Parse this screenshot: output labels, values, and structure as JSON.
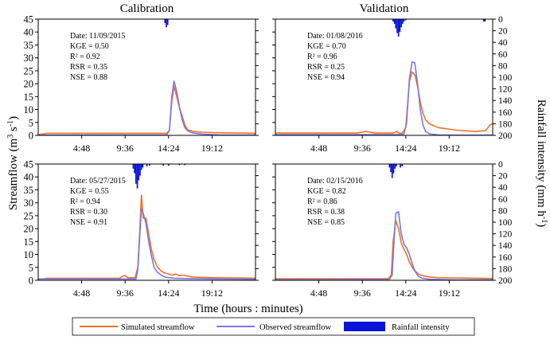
{
  "colors": {
    "simulated": "#f07124",
    "observed": "#7777ee",
    "rainfall": "#0a14d9",
    "axis": "#000000"
  },
  "figure": {
    "ylabel_left_main": "Streamflow (m",
    "ylabel_left_sup1": "3",
    "ylabel_left_mid": " s",
    "ylabel_left_sup2": "-1",
    "ylabel_left_end": ")",
    "ylabel_right_main": "Rainfall intensity (mm h",
    "ylabel_right_sup": "-1",
    "ylabel_right_end": ")",
    "xlabel": "Time (hours : minutes)"
  },
  "legend": {
    "simulated": "Simulated streamflow",
    "observed": "Observed streamflow",
    "rainfall": "Rainfall intensity"
  },
  "chart_data": [
    {
      "type": "line",
      "title": "Calibration",
      "x_unit": "hours",
      "xlim": [
        0,
        24
      ],
      "x_ticks": [
        4.8,
        9.6,
        14.4,
        19.2
      ],
      "x_tick_labels": [
        "4:48",
        "9:36",
        "14:24",
        "19:12"
      ],
      "ylim": [
        0,
        45
      ],
      "y_ticks": [
        0,
        5,
        10,
        15,
        20,
        25,
        30,
        35,
        40,
        45
      ],
      "y2lim": [
        200,
        0
      ],
      "y2_ticks": [
        0,
        20,
        40,
        60,
        80,
        100,
        120,
        140,
        160,
        180,
        200
      ],
      "stats": [
        "Date: 11/09/2015",
        "KGE = 0.50",
        "R² = 0.92",
        "RSR = 0.35",
        "NSE = 0.88"
      ],
      "series": [
        {
          "key": "simulated",
          "x": [
            0,
            1,
            13.5,
            14.2,
            14.5,
            14.75,
            15.0,
            15.3,
            15.6,
            15.9,
            16.2,
            16.5,
            17,
            18,
            20,
            22,
            24
          ],
          "y": [
            0.3,
            0.8,
            0.8,
            0.8,
            2.0,
            13.0,
            19.0,
            15.0,
            10.5,
            7.5,
            4.0,
            2.2,
            1.6,
            1.2,
            1.0,
            0.9,
            0.8
          ]
        },
        {
          "key": "observed",
          "x": [
            0,
            14.2,
            14.5,
            14.75,
            15.0,
            15.3,
            15.6,
            15.9,
            16.2,
            16.5,
            17,
            18,
            20,
            24
          ],
          "y": [
            0.1,
            0.2,
            2.0,
            15.0,
            21.0,
            17.0,
            11.0,
            6.0,
            3.0,
            1.8,
            1.0,
            0.5,
            0.2,
            0.1
          ]
        }
      ],
      "rainfall": [
        {
          "x": 14.0,
          "y": 7
        },
        {
          "x": 14.15,
          "y": 14
        },
        {
          "x": 14.3,
          "y": 10
        }
      ]
    },
    {
      "type": "line",
      "title": "Validation",
      "x_unit": "hours",
      "xlim": [
        0,
        24
      ],
      "x_ticks": [
        4.8,
        9.6,
        14.4,
        19.2
      ],
      "x_tick_labels": [
        "4:48",
        "9:36",
        "14:24",
        "19:12"
      ],
      "ylim": [
        0,
        45
      ],
      "y_ticks": [
        0,
        5,
        10,
        15,
        20,
        25,
        30,
        35,
        40,
        45
      ],
      "y2lim": [
        200,
        0
      ],
      "y2_ticks": [
        0,
        20,
        40,
        60,
        80,
        100,
        120,
        140,
        160,
        180,
        200
      ],
      "stats": [
        "Date: 01/08/2016",
        "KGE = 0.70",
        "R² = 0.96",
        "RSR = 0.25",
        "NSE = 0.94"
      ],
      "series": [
        {
          "key": "simulated",
          "x": [
            0,
            9,
            10,
            11,
            13.0,
            13.4,
            13.7,
            14.0,
            14.4,
            14.8,
            15.1,
            15.4,
            15.7,
            16.0,
            16.3,
            16.6,
            17,
            18,
            20,
            22,
            23.2,
            23.7,
            24
          ],
          "y": [
            0.9,
            0.9,
            1.5,
            0.9,
            0.9,
            1.5,
            0.8,
            0.8,
            3.0,
            21.0,
            24.5,
            23.5,
            19.0,
            13.0,
            8.5,
            6.0,
            4.5,
            3.0,
            2.0,
            1.5,
            1.8,
            4.0,
            4.5
          ]
        },
        {
          "key": "observed",
          "x": [
            0,
            13.8,
            14.2,
            14.5,
            14.8,
            15.1,
            15.4,
            15.7,
            16.0,
            16.3,
            16.6,
            17,
            18,
            20,
            24
          ],
          "y": [
            0.3,
            0.3,
            0.5,
            5.0,
            22.0,
            28.5,
            28.0,
            20.0,
            10.0,
            4.0,
            1.5,
            0.6,
            0.2,
            0.1,
            0.1
          ]
        }
      ],
      "rainfall": [
        {
          "x": 13.0,
          "y": 4
        },
        {
          "x": 13.15,
          "y": 8
        },
        {
          "x": 13.3,
          "y": 16
        },
        {
          "x": 13.45,
          "y": 24
        },
        {
          "x": 13.6,
          "y": 30
        },
        {
          "x": 13.75,
          "y": 22
        },
        {
          "x": 13.9,
          "y": 14
        },
        {
          "x": 14.05,
          "y": 8
        },
        {
          "x": 14.2,
          "y": 4
        },
        {
          "x": 14.4,
          "y": 2
        },
        {
          "x": 23.0,
          "y": 4
        },
        {
          "x": 23.15,
          "y": 4
        }
      ]
    },
    {
      "type": "line",
      "title": "",
      "x_unit": "hours",
      "xlim": [
        0,
        24
      ],
      "x_ticks": [
        4.8,
        9.6,
        14.4,
        19.2
      ],
      "x_tick_labels": [
        "4:48",
        "9:36",
        "14:24",
        "19:12"
      ],
      "ylim": [
        0,
        45
      ],
      "y_ticks": [
        0,
        5,
        10,
        15,
        20,
        25,
        30,
        35,
        40,
        45
      ],
      "y2lim": [
        200,
        0
      ],
      "y2_ticks": [
        0,
        20,
        40,
        60,
        80,
        100,
        120,
        140,
        160,
        180,
        200
      ],
      "stats": [
        "Date: 05/27/2015",
        "KGE = 0.55",
        "R² = 0.94",
        "RSR = 0.30",
        "NSE = 0.91"
      ],
      "series": [
        {
          "key": "simulated",
          "x": [
            0,
            1,
            9.0,
            9.3,
            9.6,
            9.9,
            10.3,
            10.7,
            11.0,
            11.2,
            11.4,
            11.6,
            11.9,
            12.2,
            12.5,
            12.8,
            13.2,
            13.6,
            14.0,
            14.8,
            15.2,
            15.6,
            16,
            17,
            18,
            20,
            22,
            24
          ],
          "y": [
            0.3,
            0.8,
            0.8,
            1.5,
            1.8,
            1.0,
            1.0,
            1.0,
            5.0,
            18.0,
            33.0,
            24.0,
            24.0,
            18.0,
            12.0,
            8.0,
            5.0,
            3.5,
            2.8,
            2.0,
            2.4,
            1.8,
            2.0,
            1.3,
            1.1,
            1.0,
            0.9,
            0.8
          ]
        },
        {
          "key": "observed",
          "x": [
            0,
            10.8,
            11.0,
            11.2,
            11.4,
            11.6,
            11.9,
            12.2,
            12.5,
            12.8,
            13.2,
            13.6,
            14.0,
            15,
            17,
            20,
            24
          ],
          "y": [
            0.5,
            0.5,
            4.0,
            16.0,
            28.0,
            26.0,
            22.0,
            15.0,
            9.5,
            5.0,
            3.0,
            2.0,
            1.2,
            0.8,
            0.6,
            0.5,
            0.4
          ]
        }
      ],
      "rainfall": [
        {
          "x": 10.5,
          "y": 8
        },
        {
          "x": 10.65,
          "y": 16
        },
        {
          "x": 10.8,
          "y": 34
        },
        {
          "x": 10.95,
          "y": 42
        },
        {
          "x": 11.1,
          "y": 28
        },
        {
          "x": 11.25,
          "y": 20
        },
        {
          "x": 11.4,
          "y": 10
        },
        {
          "x": 11.55,
          "y": 6
        },
        {
          "x": 12.0,
          "y": 4
        },
        {
          "x": 12.3,
          "y": 3
        },
        {
          "x": 13.8,
          "y": 3
        },
        {
          "x": 14.4,
          "y": 3
        },
        {
          "x": 15.6,
          "y": 2
        },
        {
          "x": 16.2,
          "y": 2
        }
      ]
    },
    {
      "type": "line",
      "title": "",
      "x_unit": "hours",
      "xlim": [
        0,
        24
      ],
      "x_ticks": [
        4.8,
        9.6,
        14.4,
        19.2
      ],
      "x_tick_labels": [
        "4:48",
        "9:36",
        "14:24",
        "19:12"
      ],
      "ylim": [
        0,
        45
      ],
      "y_ticks": [
        0,
        5,
        10,
        15,
        20,
        25,
        30,
        35,
        40,
        45
      ],
      "y2lim": [
        200,
        0
      ],
      "y2_ticks": [
        0,
        20,
        40,
        60,
        80,
        100,
        120,
        140,
        160,
        180,
        200
      ],
      "stats": [
        "Date: 02/15/2016",
        "KGE = 0.82",
        "R² = 0.86",
        "RSR = 0.38",
        "NSE = 0.85"
      ],
      "series": [
        {
          "key": "simulated",
          "x": [
            0,
            12.0,
            12.4,
            12.8,
            13.0,
            13.3,
            13.6,
            13.9,
            14.2,
            14.5,
            14.8,
            15.2,
            15.6,
            16.0,
            16.5,
            17,
            18,
            20,
            22,
            24
          ],
          "y": [
            0.6,
            0.6,
            0.6,
            2.0,
            15.0,
            23.0,
            20.0,
            14.5,
            12.0,
            10.0,
            7.0,
            4.5,
            3.0,
            2.0,
            1.6,
            1.3,
            1.0,
            0.9,
            0.8,
            0.7
          ]
        },
        {
          "key": "observed",
          "x": [
            0,
            12.6,
            12.9,
            13.1,
            13.3,
            13.6,
            13.9,
            14.2,
            14.5,
            14.8,
            15.1,
            15.4,
            15.8,
            16.2,
            17,
            18,
            20,
            24
          ],
          "y": [
            0.2,
            0.3,
            2.0,
            15.0,
            26.0,
            26.5,
            18.0,
            14.0,
            12.5,
            10.0,
            6.5,
            3.5,
            1.5,
            0.8,
            0.4,
            0.3,
            0.2,
            0.2
          ]
        }
      ],
      "rainfall": [
        {
          "x": 12.6,
          "y": 6
        },
        {
          "x": 12.75,
          "y": 14
        },
        {
          "x": 12.9,
          "y": 24
        },
        {
          "x": 13.05,
          "y": 16
        },
        {
          "x": 13.2,
          "y": 8
        },
        {
          "x": 13.35,
          "y": 4
        },
        {
          "x": 13.8,
          "y": 6
        },
        {
          "x": 14.0,
          "y": 4
        }
      ]
    }
  ]
}
